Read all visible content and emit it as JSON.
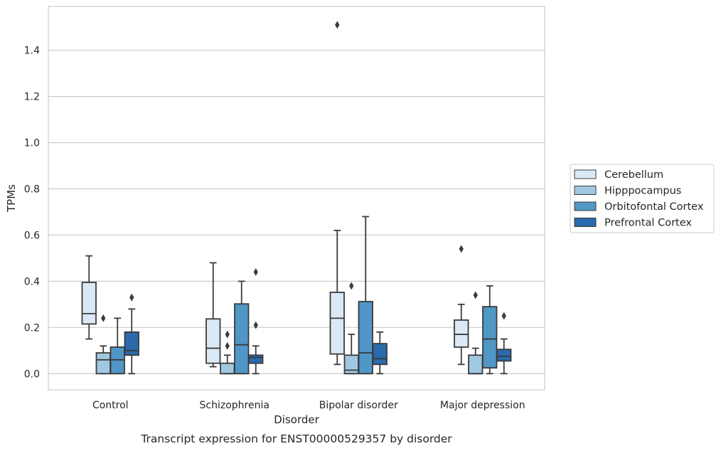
{
  "chart_data": {
    "type": "box",
    "caption": "Transcript expression for ENST00000529357 by disorder",
    "xlabel": "Disorder",
    "ylabel": "TPMs",
    "ylim": [
      -0.07,
      1.59
    ],
    "yticks": [
      "0.0",
      "0.2",
      "0.4",
      "0.6",
      "0.8",
      "1.0",
      "1.2",
      "1.4"
    ],
    "categories": [
      "Control",
      "Schizophrenia",
      "Bipolar disorder",
      "Major depression"
    ],
    "grid": "horizontal",
    "legend_position": "right",
    "series": [
      {
        "name": "Cerebellum",
        "color": "#dbe9f6",
        "boxes": [
          {
            "whislo": 0.15,
            "q1": 0.215,
            "med": 0.26,
            "q3": 0.395,
            "whishi": 0.51,
            "fliers": []
          },
          {
            "whislo": 0.03,
            "q1": 0.045,
            "med": 0.11,
            "q3": 0.237,
            "whishi": 0.48,
            "fliers": []
          },
          {
            "whislo": 0.04,
            "q1": 0.085,
            "med": 0.24,
            "q3": 0.352,
            "whishi": 0.62,
            "fliers": [
              1.51
            ]
          },
          {
            "whislo": 0.04,
            "q1": 0.115,
            "med": 0.17,
            "q3": 0.232,
            "whishi": 0.3,
            "fliers": [
              0.54
            ]
          }
        ]
      },
      {
        "name": "Hipppocampus",
        "color": "#a0c8e0",
        "boxes": [
          {
            "whislo": 0.0,
            "q1": 0.0,
            "med": 0.06,
            "q3": 0.09,
            "whishi": 0.12,
            "fliers": [
              0.24
            ]
          },
          {
            "whislo": 0.0,
            "q1": 0.0,
            "med": 0.0,
            "q3": 0.045,
            "whishi": 0.08,
            "fliers": [
              0.12,
              0.17
            ]
          },
          {
            "whislo": 0.0,
            "q1": 0.0,
            "med": 0.015,
            "q3": 0.08,
            "whishi": 0.17,
            "fliers": [
              0.38
            ]
          },
          {
            "whislo": 0.0,
            "q1": 0.0,
            "med": 0.0,
            "q3": 0.08,
            "whishi": 0.11,
            "fliers": [
              0.34
            ]
          }
        ]
      },
      {
        "name": "Orbitofontal Cortex",
        "color": "#5096c6",
        "boxes": [
          {
            "whislo": 0.0,
            "q1": 0.0,
            "med": 0.06,
            "q3": 0.115,
            "whishi": 0.24,
            "fliers": []
          },
          {
            "whislo": 0.0,
            "q1": 0.0,
            "med": 0.125,
            "q3": 0.302,
            "whishi": 0.4,
            "fliers": []
          },
          {
            "whislo": 0.0,
            "q1": 0.0,
            "med": 0.09,
            "q3": 0.312,
            "whishi": 0.68,
            "fliers": []
          },
          {
            "whislo": 0.0,
            "q1": 0.025,
            "med": 0.15,
            "q3": 0.29,
            "whishi": 0.38,
            "fliers": []
          }
        ]
      },
      {
        "name": "Prefrontal Cortex",
        "color": "#2a6aad",
        "boxes": [
          {
            "whislo": 0.0,
            "q1": 0.08,
            "med": 0.1,
            "q3": 0.18,
            "whishi": 0.28,
            "fliers": [
              0.33
            ]
          },
          {
            "whislo": 0.0,
            "q1": 0.045,
            "med": 0.07,
            "q3": 0.08,
            "whishi": 0.12,
            "fliers": [
              0.21,
              0.44
            ]
          },
          {
            "whislo": 0.0,
            "q1": 0.04,
            "med": 0.065,
            "q3": 0.13,
            "whishi": 0.18,
            "fliers": []
          },
          {
            "whislo": 0.0,
            "q1": 0.055,
            "med": 0.075,
            "q3": 0.105,
            "whishi": 0.15,
            "fliers": [
              0.25
            ]
          }
        ]
      }
    ]
  }
}
